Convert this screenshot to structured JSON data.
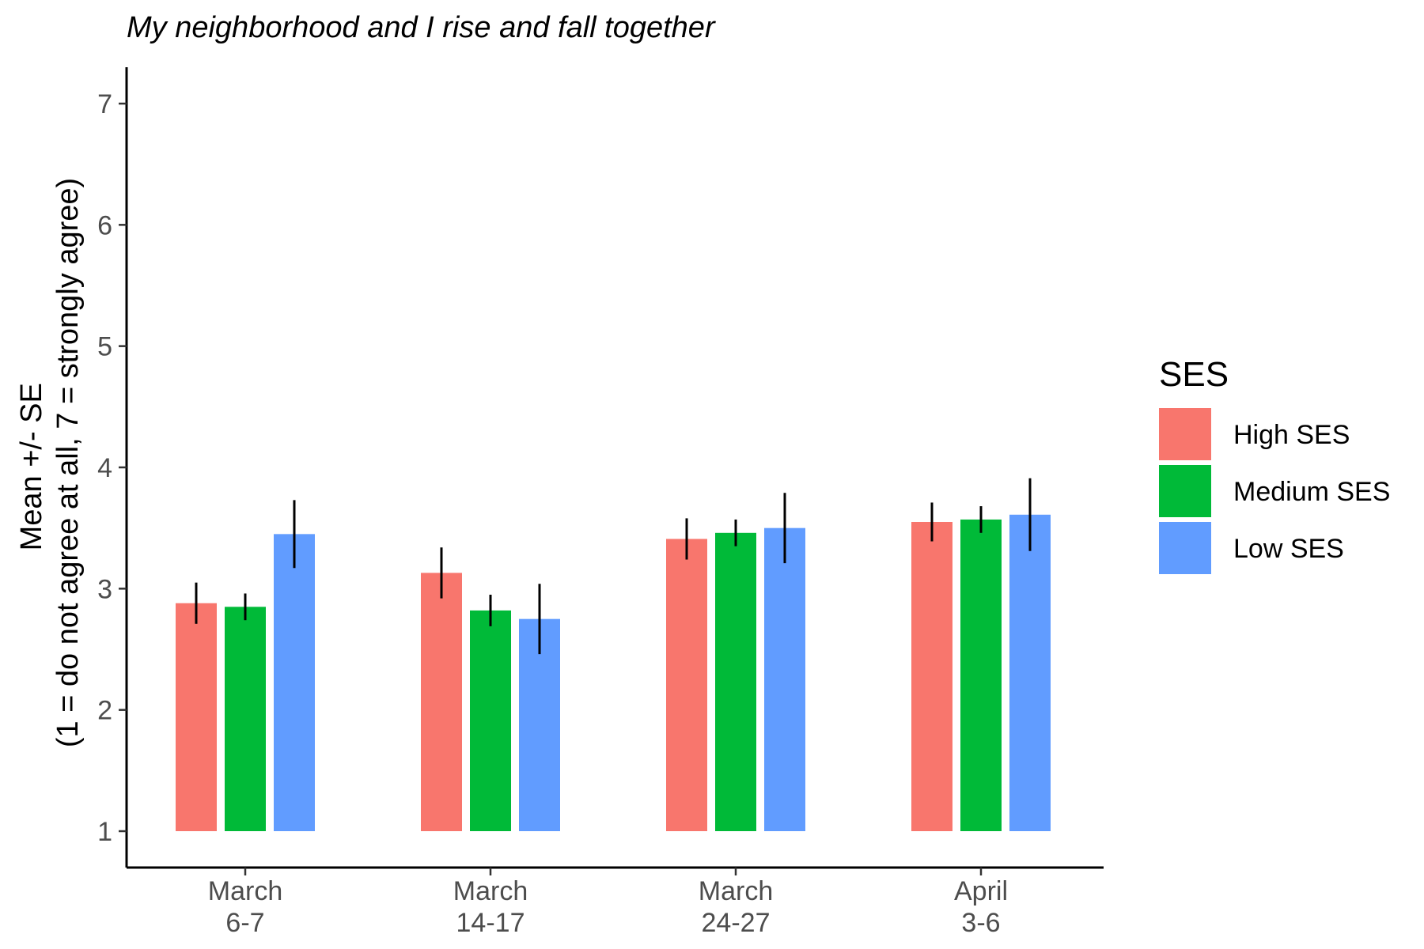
{
  "chart_data": {
    "type": "bar",
    "title": "My neighborhood and I rise and fall together",
    "ylabel_lines": [
      "Mean +/- SE",
      "(1 = do not agree at all, 7 = strongly agree)"
    ],
    "xlabel": "",
    "categories": [
      [
        "March",
        "6-7"
      ],
      [
        "March",
        "14-17"
      ],
      [
        "March",
        "24-27"
      ],
      [
        "April",
        "3-6"
      ]
    ],
    "ylim": [
      0.7,
      7.3
    ],
    "yticks": [
      1,
      2,
      3,
      4,
      5,
      6,
      7
    ],
    "baseline": 1,
    "grid": false,
    "legend": {
      "title": "SES",
      "placement": "right"
    },
    "series": [
      {
        "name": "High SES",
        "color": "#F8766D",
        "values": [
          2.88,
          3.13,
          3.41,
          3.55
        ],
        "se": [
          0.17,
          0.21,
          0.17,
          0.16
        ]
      },
      {
        "name": "Medium SES",
        "color": "#00BA38",
        "values": [
          2.85,
          2.82,
          3.46,
          3.57
        ],
        "se": [
          0.11,
          0.13,
          0.11,
          0.11
        ]
      },
      {
        "name": "Low SES",
        "color": "#619CFF",
        "values": [
          3.45,
          2.75,
          3.5,
          3.61
        ],
        "se": [
          0.28,
          0.29,
          0.29,
          0.3
        ]
      }
    ]
  }
}
